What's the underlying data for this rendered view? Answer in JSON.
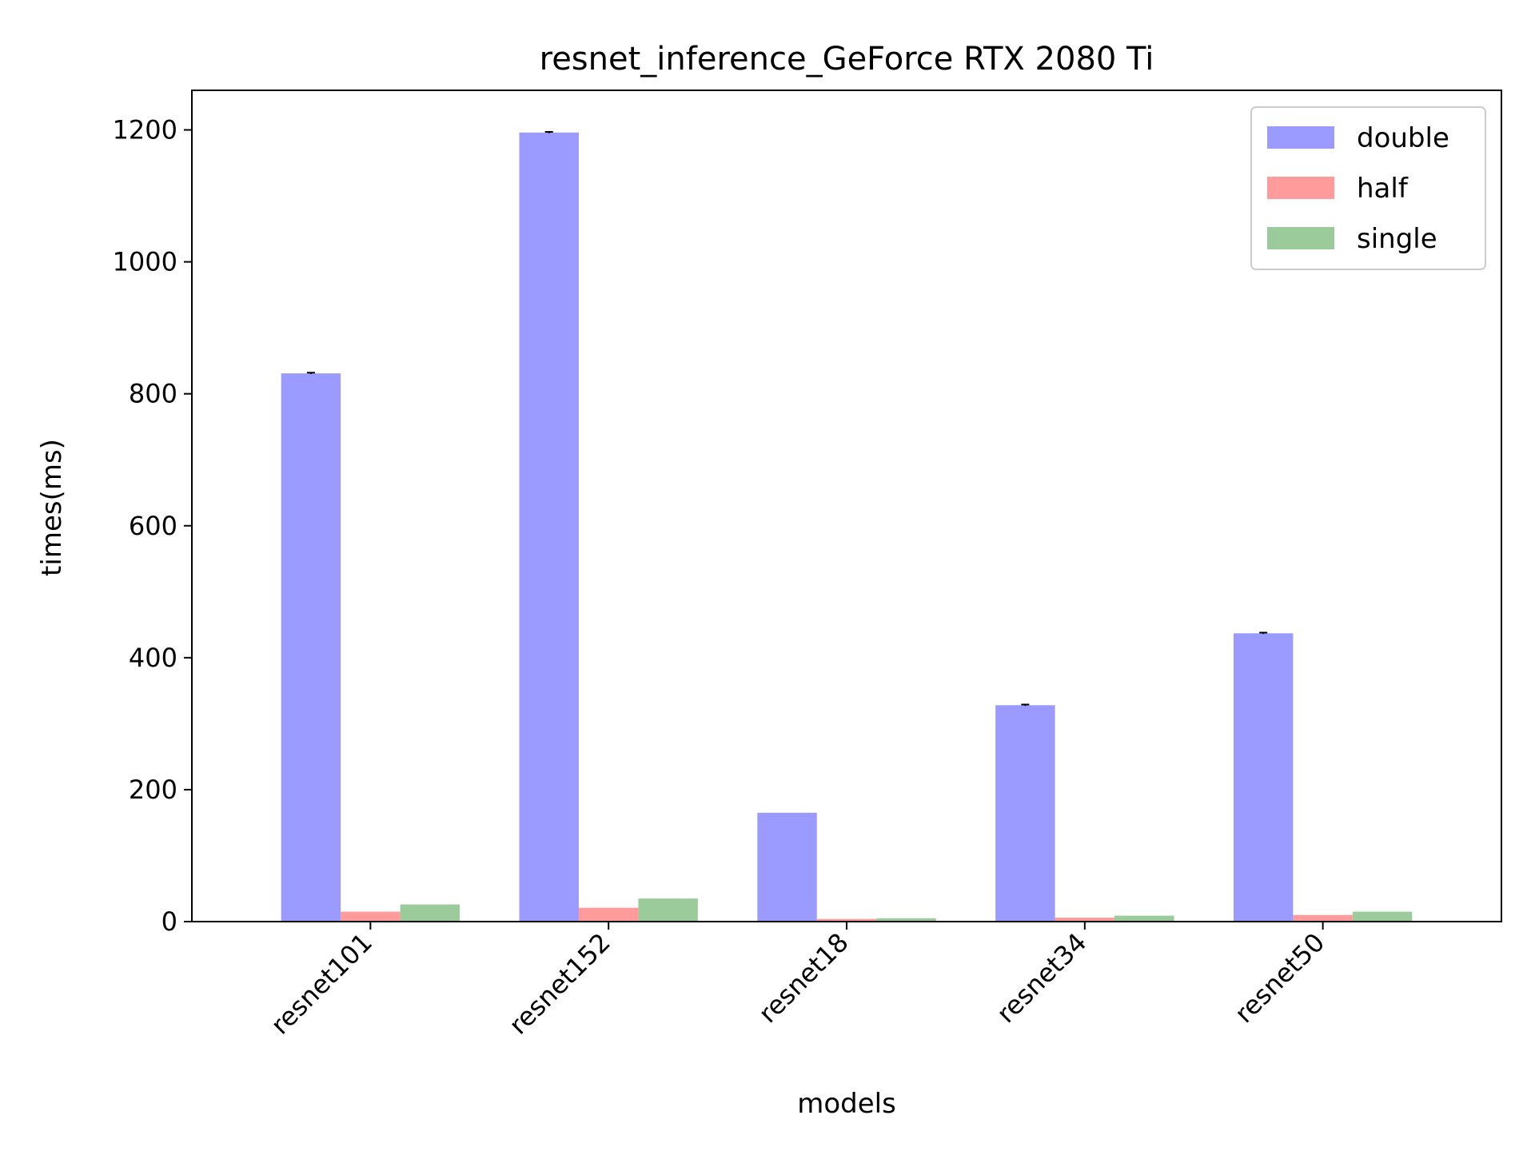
{
  "chart_data": {
    "type": "bar",
    "title": "resnet_inference_GeForce RTX 2080 Ti",
    "xlabel": "models",
    "ylabel": "times(ms)",
    "categories": [
      "resnet101",
      "resnet152",
      "resnet18",
      "resnet34",
      "resnet50"
    ],
    "ylim": [
      0,
      1260
    ],
    "yticks": [
      0,
      200,
      400,
      600,
      800,
      1000,
      1200
    ],
    "grid": false,
    "legend_position": "top-right",
    "series": [
      {
        "name": "double",
        "color": "#9b9bff",
        "values": [
          831,
          1196,
          165,
          328,
          437
        ],
        "errors": [
          1,
          1,
          0,
          1,
          1
        ]
      },
      {
        "name": "half",
        "color": "#ff9b9b",
        "values": [
          15,
          21,
          4,
          6,
          10
        ],
        "errors": [
          0,
          0,
          0,
          0,
          0
        ]
      },
      {
        "name": "single",
        "color": "#9bcb9b",
        "values": [
          26,
          35,
          5,
          9,
          15
        ],
        "errors": [
          0,
          0,
          0,
          0,
          0
        ]
      }
    ]
  }
}
